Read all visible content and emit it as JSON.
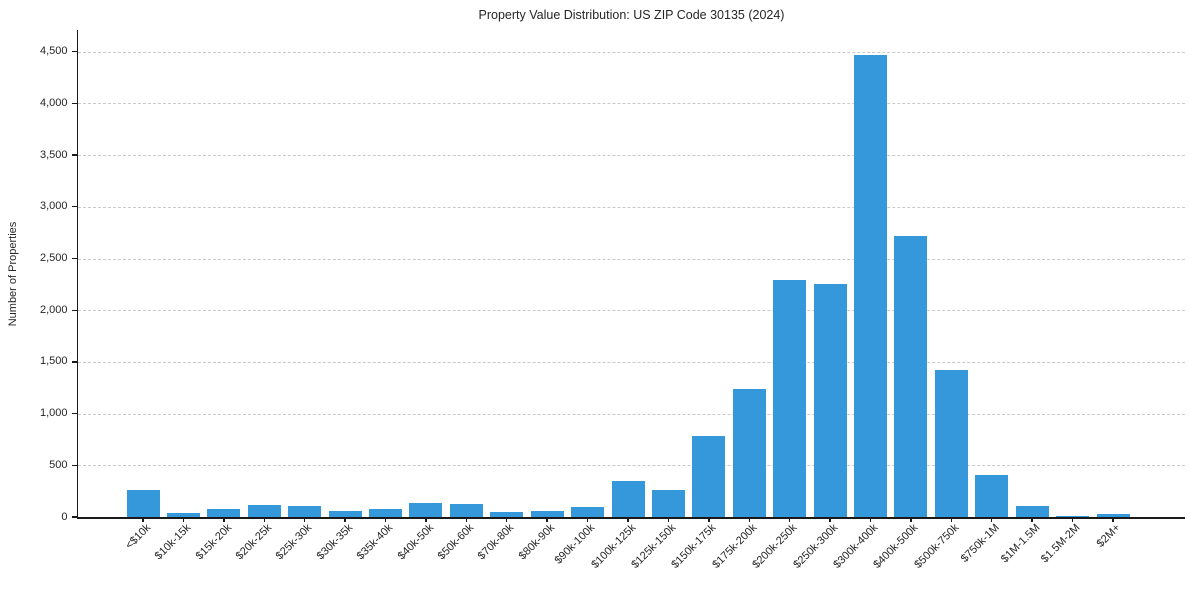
{
  "chart_data": {
    "type": "bar",
    "title": "Property Value Distribution: US ZIP Code 30135 (2024)",
    "xlabel": "",
    "ylabel": "Number of Properties",
    "categories": [
      "<$10k",
      "$10k-15k",
      "$15k-20k",
      "$20k-25k",
      "$25k-30k",
      "$30k-35k",
      "$35k-40k",
      "$40k-50k",
      "$50k-60k",
      "$70k-80k",
      "$80k-90k",
      "$90k-100k",
      "$100k-125k",
      "$125k-150k",
      "$150k-175k",
      "$175k-200k",
      "$200k-250k",
      "$250k-300k",
      "$300k-400k",
      "$400k-500k",
      "$500k-750k",
      "$750k-1M",
      "$1M-1.5M",
      "$1.5M-2M",
      "$2M+"
    ],
    "values": [
      260,
      35,
      80,
      120,
      110,
      55,
      80,
      135,
      125,
      45,
      60,
      95,
      345,
      260,
      780,
      1240,
      2290,
      2250,
      4470,
      2715,
      1420,
      405,
      105,
      10,
      25
    ],
    "ylim": [
      0,
      4700
    ],
    "ytick_step": 500,
    "ytick_max": 4500,
    "ytick_labels": [
      "0",
      "500",
      "1,000",
      "1,500",
      "2,000",
      "2,500",
      "3,000",
      "3,500",
      "4,000",
      "4,500"
    ],
    "grid": "horizontal-dashed",
    "legend": "none",
    "bar_color": "#3498db",
    "axis_color": "#1a1a1a",
    "grid_color": "#c9c9c9",
    "text_color": "#262626",
    "background": "#ffffff"
  }
}
